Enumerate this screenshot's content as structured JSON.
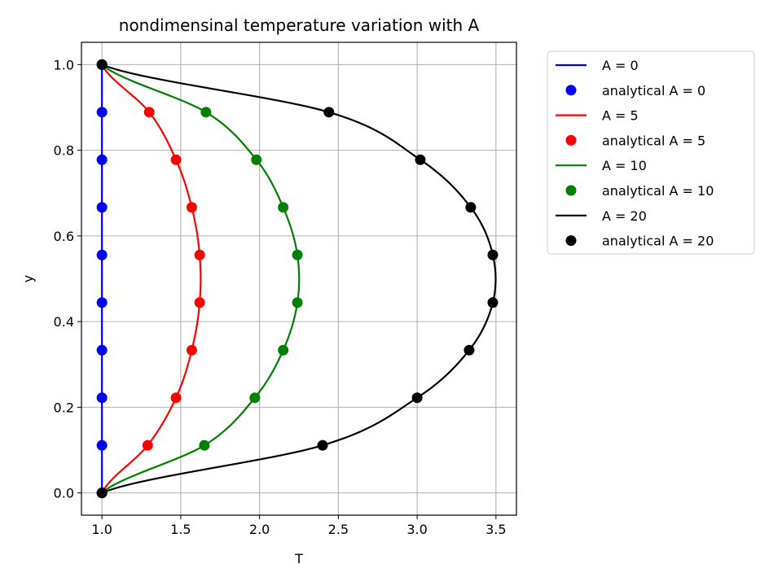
{
  "chart_data": {
    "type": "line",
    "title": "nondimensinal temperature variation with A",
    "xlabel": "T",
    "ylabel": "y",
    "xlim": [
      0.87,
      3.63
    ],
    "ylim": [
      -0.052,
      1.052
    ],
    "xticks": [
      1.0,
      1.5,
      2.0,
      2.5,
      3.0,
      3.5
    ],
    "xtick_labels": [
      "1.0",
      "1.5",
      "2.0",
      "2.5",
      "3.0",
      "3.5"
    ],
    "yticks": [
      0.0,
      0.2,
      0.4,
      0.6,
      0.8,
      1.0
    ],
    "ytick_labels": [
      "0.0",
      "0.2",
      "0.4",
      "0.6",
      "0.8",
      "1.0"
    ],
    "grid": true,
    "legend_position": "outside-right",
    "series": [
      {
        "A": 0,
        "line_label": "A = 0",
        "marker_label": "analytical A = 0",
        "color": "#0000ff",
        "points": {
          "y": [
            0.0,
            0.1111,
            0.2222,
            0.3333,
            0.4444,
            0.5556,
            0.6667,
            0.7778,
            0.8889,
            1.0
          ],
          "T": [
            1.0,
            1.0,
            1.0,
            1.0,
            1.0,
            1.0,
            1.0,
            1.0,
            1.0,
            1.0
          ]
        }
      },
      {
        "A": 5,
        "line_label": "A = 5",
        "marker_label": "analytical A = 5",
        "color": "#ff0000",
        "points": {
          "y": [
            0.0,
            0.1111,
            0.2222,
            0.3333,
            0.4444,
            0.5556,
            0.6667,
            0.7778,
            0.8889,
            1.0
          ],
          "T": [
            1.0,
            1.29,
            1.47,
            1.57,
            1.62,
            1.62,
            1.57,
            1.47,
            1.3,
            1.0
          ]
        }
      },
      {
        "A": 10,
        "line_label": "A = 10",
        "marker_label": "analytical A = 10",
        "color": "#008000",
        "points": {
          "y": [
            0.0,
            0.1111,
            0.2222,
            0.3333,
            0.4444,
            0.5556,
            0.6667,
            0.7778,
            0.8889,
            1.0
          ],
          "T": [
            1.0,
            1.65,
            1.97,
            2.15,
            2.24,
            2.24,
            2.15,
            1.98,
            1.66,
            1.0
          ]
        }
      },
      {
        "A": 20,
        "line_label": "A = 20",
        "marker_label": "analytical A = 20",
        "color": "#000000",
        "points": {
          "y": [
            0.0,
            0.1111,
            0.2222,
            0.3333,
            0.4444,
            0.5556,
            0.6667,
            0.7778,
            0.8889,
            1.0
          ],
          "T": [
            1.0,
            2.4,
            3.0,
            3.33,
            3.48,
            3.48,
            3.34,
            3.02,
            2.44,
            1.0
          ]
        }
      }
    ]
  }
}
